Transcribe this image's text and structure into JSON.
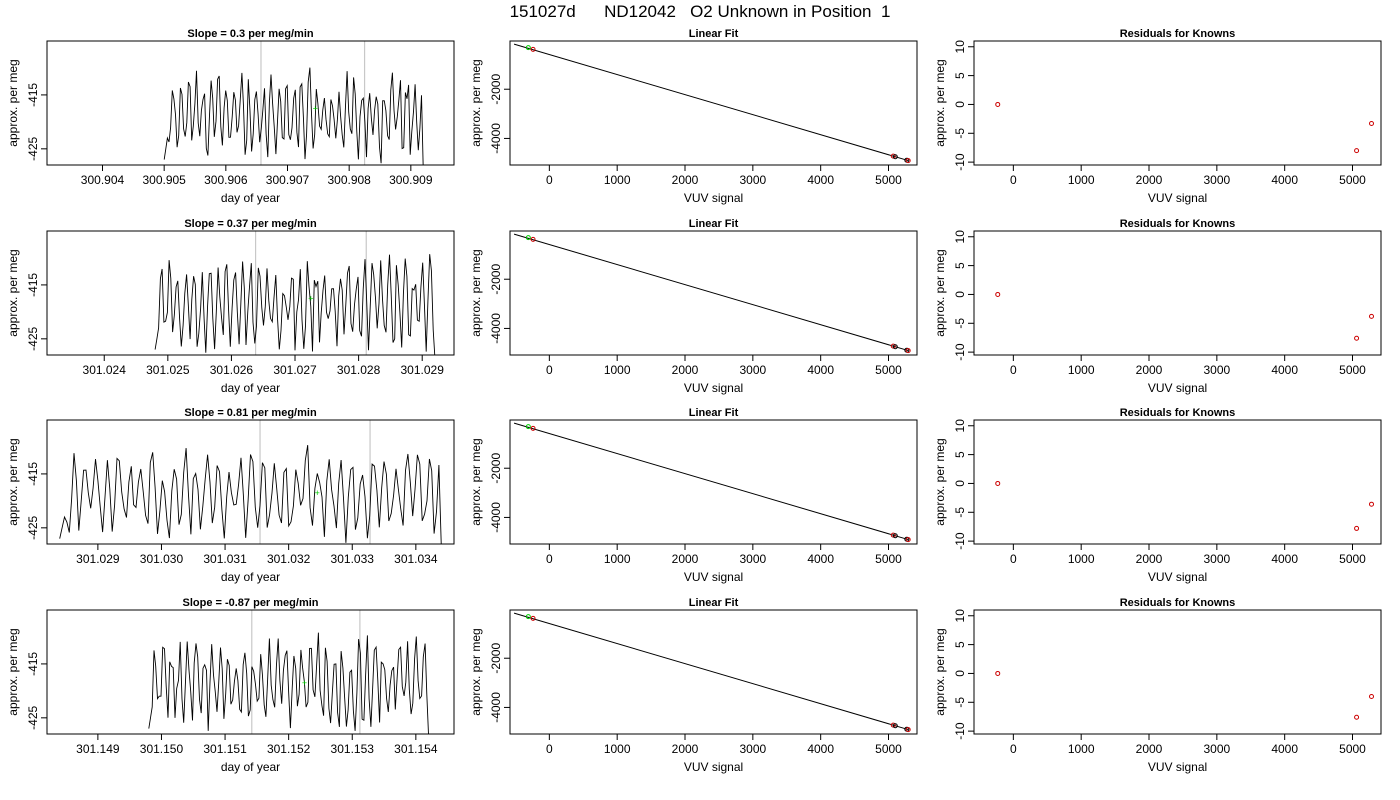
{
  "figure_title": "151027d      ND12042   O2 Unknown in Position  1",
  "chart_data": [
    {
      "type": "line",
      "title": "Slope =  0.3  per meg/min",
      "xlabel": "day of year",
      "ylabel": "approx. per meg",
      "xlim": [
        300.9031,
        300.9097
      ],
      "ylim": [
        -428,
        -405
      ],
      "xticks": [
        "300.904",
        "300.905",
        "300.906",
        "300.907",
        "300.908",
        "300.909"
      ],
      "yticks": [
        "-415",
        "-425"
      ],
      "vlines": [
        300.90657,
        300.90825
      ],
      "trace_start": 300.905,
      "trace_end": 300.9092,
      "fit_point": {
        "x": 300.90745,
        "y": -417.5
      },
      "colors": {
        "trace": "#000000",
        "vline": "#c8c8c8",
        "fit_point": "#00cc00"
      }
    },
    {
      "type": "scatter",
      "title": "Linear Fit",
      "xlabel": "VUV signal",
      "ylabel": "approx. per meg",
      "xlim": [
        -580,
        5420
      ],
      "ylim": [
        -5080,
        -40
      ],
      "xticks": [
        "0",
        "1000",
        "2000",
        "3000",
        "4000",
        "5000"
      ],
      "yticks": [
        "-2000",
        "-4000"
      ],
      "fit_line": {
        "x": [
          -520,
          5290
        ],
        "y": [
          -166,
          -4900
        ]
      },
      "points": [
        {
          "x": -310,
          "y": -310,
          "color": "#00cc00"
        },
        {
          "x": -240,
          "y": -380,
          "color": "#cc0000"
        },
        {
          "x": 5070,
          "y": -4720,
          "color": "#cc0000"
        },
        {
          "x": 5100,
          "y": -4745,
          "color": "#000000"
        },
        {
          "x": 5270,
          "y": -4885,
          "color": "#000000"
        },
        {
          "x": 5290,
          "y": -4900,
          "color": "#cc0000"
        }
      ]
    },
    {
      "type": "scatter",
      "title": "Residuals for Knowns",
      "xlabel": "VUV signal",
      "ylabel": "approx. per meg",
      "xlim": [
        -580,
        5420
      ],
      "ylim": [
        -10.5,
        11
      ],
      "xticks": [
        "0",
        "1000",
        "2000",
        "3000",
        "4000",
        "5000"
      ],
      "yticks": [
        "-10",
        "-5",
        "0",
        "5",
        "10"
      ],
      "points": [
        {
          "x": -230,
          "y": 0,
          "color": "#cc0000"
        },
        {
          "x": 5060,
          "y": -8,
          "color": "#cc0000"
        },
        {
          "x": 5280,
          "y": -3.3,
          "color": "#cc0000"
        }
      ]
    },
    {
      "type": "line",
      "title": "Slope =  0.37  per meg/min",
      "xlabel": "day of year",
      "ylabel": "approx. per meg",
      "xlim": [
        301.0231,
        301.0295
      ],
      "ylim": [
        -428,
        -405
      ],
      "xticks": [
        "301.024",
        "301.025",
        "301.026",
        "301.027",
        "301.028",
        "301.029"
      ],
      "yticks": [
        "-415",
        "-425"
      ],
      "vlines": [
        301.02638,
        301.02812
      ],
      "trace_start": 301.0248,
      "trace_end": 301.0292,
      "fit_point": {
        "x": 301.02725,
        "y": -417.5
      },
      "colors": {
        "trace": "#000000",
        "vline": "#c8c8c8",
        "fit_point": "#00cc00"
      }
    },
    {
      "type": "scatter",
      "title": "Linear Fit",
      "xlabel": "VUV signal",
      "ylabel": "approx. per meg",
      "xlim": [
        -580,
        5420
      ],
      "ylim": [
        -5080,
        -40
      ],
      "xticks": [
        "0",
        "1000",
        "2000",
        "3000",
        "4000",
        "5000"
      ],
      "yticks": [
        "-2000",
        "-4000"
      ],
      "fit_line": {
        "x": [
          -520,
          5290
        ],
        "y": [
          -166,
          -4900
        ]
      },
      "points": [
        {
          "x": -310,
          "y": -310,
          "color": "#00cc00"
        },
        {
          "x": -240,
          "y": -380,
          "color": "#cc0000"
        },
        {
          "x": 5070,
          "y": -4720,
          "color": "#cc0000"
        },
        {
          "x": 5100,
          "y": -4745,
          "color": "#000000"
        },
        {
          "x": 5270,
          "y": -4885,
          "color": "#000000"
        },
        {
          "x": 5290,
          "y": -4900,
          "color": "#cc0000"
        }
      ]
    },
    {
      "type": "scatter",
      "title": "Residuals for Knowns",
      "xlabel": "VUV signal",
      "ylabel": "approx. per meg",
      "xlim": [
        -580,
        5420
      ],
      "ylim": [
        -10.5,
        11
      ],
      "xticks": [
        "0",
        "1000",
        "2000",
        "3000",
        "4000",
        "5000"
      ],
      "yticks": [
        "-10",
        "-5",
        "0",
        "5",
        "10"
      ],
      "points": [
        {
          "x": -230,
          "y": 0,
          "color": "#cc0000"
        },
        {
          "x": 5060,
          "y": -7.6,
          "color": "#cc0000"
        },
        {
          "x": 5280,
          "y": -3.8,
          "color": "#cc0000"
        }
      ]
    },
    {
      "type": "line",
      "title": "Slope =  0.81  per meg/min",
      "xlabel": "day of year",
      "ylabel": "approx. per meg",
      "xlim": [
        301.0282,
        301.0346
      ],
      "ylim": [
        -428,
        -405
      ],
      "xticks": [
        "301.029",
        "301.030",
        "301.031",
        "301.032",
        "301.033",
        "301.034"
      ],
      "yticks": [
        "-415",
        "-425"
      ],
      "vlines": [
        301.03155,
        301.03328
      ],
      "trace_start": 301.0284,
      "trace_end": 301.0344,
      "fit_point": {
        "x": 301.03245,
        "y": -418.5
      },
      "colors": {
        "trace": "#000000",
        "vline": "#c8c8c8",
        "fit_point": "#00cc00"
      }
    },
    {
      "type": "scatter",
      "title": "Linear Fit",
      "xlabel": "VUV signal",
      "ylabel": "approx. per meg",
      "xlim": [
        -580,
        5420
      ],
      "ylim": [
        -5080,
        -40
      ],
      "xticks": [
        "0",
        "1000",
        "2000",
        "3000",
        "4000",
        "5000"
      ],
      "yticks": [
        "-2000",
        "-4000"
      ],
      "fit_line": {
        "x": [
          -520,
          5290
        ],
        "y": [
          -166,
          -4900
        ]
      },
      "points": [
        {
          "x": -310,
          "y": -310,
          "color": "#00cc00"
        },
        {
          "x": -240,
          "y": -380,
          "color": "#cc0000"
        },
        {
          "x": 5070,
          "y": -4720,
          "color": "#cc0000"
        },
        {
          "x": 5100,
          "y": -4745,
          "color": "#000000"
        },
        {
          "x": 5270,
          "y": -4885,
          "color": "#000000"
        },
        {
          "x": 5290,
          "y": -4900,
          "color": "#cc0000"
        }
      ]
    },
    {
      "type": "scatter",
      "title": "Residuals for Knowns",
      "xlabel": "VUV signal",
      "ylabel": "approx. per meg",
      "xlim": [
        -580,
        5420
      ],
      "ylim": [
        -10.5,
        11
      ],
      "xticks": [
        "0",
        "1000",
        "2000",
        "3000",
        "4000",
        "5000"
      ],
      "yticks": [
        "-10",
        "-5",
        "0",
        "5",
        "10"
      ],
      "points": [
        {
          "x": -230,
          "y": 0,
          "color": "#cc0000"
        },
        {
          "x": 5060,
          "y": -7.8,
          "color": "#cc0000"
        },
        {
          "x": 5280,
          "y": -3.6,
          "color": "#cc0000"
        }
      ]
    },
    {
      "type": "line",
      "title": "Slope =  -0.87  per meg/min",
      "xlabel": "day of year",
      "ylabel": "approx. per meg",
      "xlim": [
        301.1482,
        301.1546
      ],
      "ylim": [
        -428,
        -405
      ],
      "xticks": [
        "301.149",
        "301.150",
        "301.151",
        "301.152",
        "301.153",
        "301.154"
      ],
      "yticks": [
        "-415",
        "-425"
      ],
      "vlines": [
        301.15142,
        301.15312
      ],
      "trace_start": 301.1498,
      "trace_end": 301.1542,
      "fit_point": {
        "x": 301.15225,
        "y": -418.5
      },
      "colors": {
        "trace": "#000000",
        "vline": "#c8c8c8",
        "fit_point": "#00cc00"
      }
    },
    {
      "type": "scatter",
      "title": "Linear Fit",
      "xlabel": "VUV signal",
      "ylabel": "approx. per meg",
      "xlim": [
        -580,
        5420
      ],
      "ylim": [
        -5080,
        -40
      ],
      "xticks": [
        "0",
        "1000",
        "2000",
        "3000",
        "4000",
        "5000"
      ],
      "yticks": [
        "-2000",
        "-4000"
      ],
      "fit_line": {
        "x": [
          -520,
          5290
        ],
        "y": [
          -166,
          -4900
        ]
      },
      "points": [
        {
          "x": -310,
          "y": -310,
          "color": "#00cc00"
        },
        {
          "x": -240,
          "y": -380,
          "color": "#cc0000"
        },
        {
          "x": 5070,
          "y": -4720,
          "color": "#cc0000"
        },
        {
          "x": 5100,
          "y": -4745,
          "color": "#000000"
        },
        {
          "x": 5270,
          "y": -4885,
          "color": "#000000"
        },
        {
          "x": 5290,
          "y": -4900,
          "color": "#cc0000"
        }
      ]
    },
    {
      "type": "scatter",
      "title": "Residuals for Knowns",
      "xlabel": "VUV signal",
      "ylabel": "approx. per meg",
      "xlim": [
        -580,
        5420
      ],
      "ylim": [
        -10.5,
        11
      ],
      "xticks": [
        "0",
        "1000",
        "2000",
        "3000",
        "4000",
        "5000"
      ],
      "yticks": [
        "-10",
        "-5",
        "0",
        "5",
        "10"
      ],
      "points": [
        {
          "x": -230,
          "y": 0,
          "color": "#cc0000"
        },
        {
          "x": 5060,
          "y": -7.6,
          "color": "#cc0000"
        },
        {
          "x": 5280,
          "y": -4.0,
          "color": "#cc0000"
        }
      ]
    }
  ]
}
